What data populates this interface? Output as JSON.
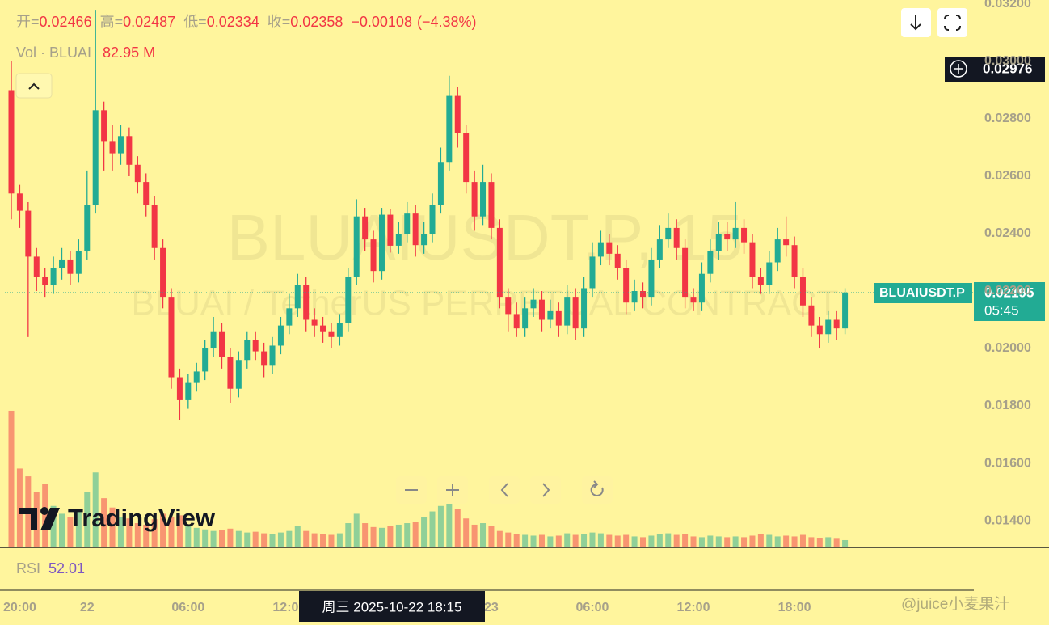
{
  "header": {
    "ohlc_labels": [
      "开=",
      "高=",
      "低=",
      "收="
    ],
    "change": "−0.00108",
    "change_pct": "(−4.38%)",
    "vol_label": "Vol · BLUAI",
    "vol_value": "82.95 M",
    "rsi_label": "RSI",
    "rsi_value": "52.01"
  },
  "watermark": {
    "symbol": "BLUAIUSDT.P, 15",
    "description": "BLUAI / TetherUS PERPETUAL CONTRACT"
  },
  "brand": "TradingView",
  "footer_watermark": "@juice小麦果汁",
  "crosshair": {
    "price": "0.02976",
    "time": "周三 2025-10-22 18:15"
  },
  "last_price": {
    "symbol": "BLUAIUSDT.P",
    "price": "0.02195",
    "countdown": "05:45"
  },
  "chart_data": {
    "type": "candlestick",
    "categories": [
      null,
      "20:00",
      null,
      null,
      null,
      null,
      null,
      null,
      null,
      "22",
      null,
      null,
      null,
      null,
      null,
      null,
      null,
      null,
      null,
      null,
      null,
      "06:00",
      null,
      null,
      null,
      null,
      null,
      null,
      null,
      null,
      null,
      null,
      null,
      "12:00",
      null,
      null,
      null,
      null,
      null,
      null,
      null,
      null,
      null,
      null,
      null,
      null,
      null,
      null,
      null,
      null,
      null,
      null,
      null,
      null,
      null,
      null,
      null,
      "23",
      null,
      null,
      null,
      null,
      null,
      null,
      null,
      null,
      null,
      null,
      null,
      "06:00",
      null,
      null,
      null,
      null,
      null,
      null,
      null,
      null,
      null,
      null,
      null,
      "12:00",
      null,
      null,
      null,
      null,
      null,
      null,
      null,
      null,
      null,
      null,
      null,
      "18:00",
      null,
      null,
      null,
      null,
      null,
      null
    ],
    "open": [
      0.029,
      0.0254,
      0.0248,
      0.0232,
      0.0225,
      0.0222,
      0.0228,
      0.0231,
      0.0226,
      0.0234,
      0.025,
      0.0283,
      0.0272,
      0.0268,
      0.0274,
      0.0264,
      0.0258,
      0.025,
      0.0235,
      0.0218,
      0.019,
      0.0182,
      0.0188,
      0.0192,
      0.02,
      0.0206,
      0.0197,
      0.0186,
      0.0196,
      0.0203,
      0.0199,
      0.0194,
      0.0201,
      0.0208,
      0.0214,
      0.0222,
      0.021,
      0.0208,
      0.0206,
      0.0204,
      0.0209,
      0.0225,
      0.0246,
      0.0238,
      0.0227,
      0.02466,
      0.02358,
      0.024,
      0.0247,
      0.0236,
      0.024,
      0.025,
      0.0265,
      0.0288,
      0.0275,
      0.0258,
      0.0246,
      0.0258,
      0.0242,
      0.0218,
      0.0212,
      0.0207,
      0.0214,
      0.0217,
      0.021,
      0.0213,
      0.0208,
      0.0218,
      0.0207,
      0.0221,
      0.0232,
      0.0237,
      0.0233,
      0.0228,
      0.0216,
      0.022,
      0.0218,
      0.0231,
      0.0238,
      0.0242,
      0.0235,
      0.0218,
      0.0216,
      0.0226,
      0.0234,
      0.024,
      0.0238,
      0.0242,
      0.0237,
      0.0225,
      0.0222,
      0.023,
      0.0238,
      0.0236,
      0.0225,
      0.0215,
      0.0208,
      0.0205,
      0.021,
      0.0207
    ],
    "high": [
      0.03,
      0.0257,
      0.0251,
      0.0235,
      0.0228,
      0.0232,
      0.0235,
      0.0234,
      0.0238,
      0.0262,
      0.0318,
      0.0286,
      0.0278,
      0.0278,
      0.0277,
      0.0267,
      0.0261,
      0.0253,
      0.0238,
      0.0221,
      0.0193,
      0.0191,
      0.0195,
      0.0203,
      0.0211,
      0.0209,
      0.02,
      0.0199,
      0.0206,
      0.0206,
      0.0202,
      0.0204,
      0.0211,
      0.0219,
      0.0226,
      0.0225,
      0.0214,
      0.0211,
      0.0209,
      0.0212,
      0.0228,
      0.0252,
      0.0249,
      0.0241,
      0.0249,
      0.02487,
      0.0244,
      0.0251,
      0.025,
      0.0244,
      0.0254,
      0.027,
      0.0295,
      0.0291,
      0.0278,
      0.0262,
      0.0264,
      0.0261,
      0.0245,
      0.0221,
      0.0216,
      0.0218,
      0.0221,
      0.022,
      0.0217,
      0.0216,
      0.0222,
      0.0221,
      0.0225,
      0.0237,
      0.0241,
      0.024,
      0.0236,
      0.0231,
      0.0224,
      0.0223,
      0.0235,
      0.0243,
      0.0247,
      0.0245,
      0.0238,
      0.0221,
      0.023,
      0.0238,
      0.0244,
      0.0244,
      0.0251,
      0.0245,
      0.024,
      0.0228,
      0.0234,
      0.0242,
      0.0246,
      0.0239,
      0.0228,
      0.0218,
      0.0211,
      0.0213,
      0.0213,
      0.0221
    ],
    "low": [
      0.0245,
      0.0242,
      0.0204,
      0.022,
      0.0218,
      0.0219,
      0.0224,
      0.0222,
      0.0223,
      0.0231,
      0.0247,
      0.0262,
      0.0262,
      0.0264,
      0.026,
      0.0254,
      0.0246,
      0.0231,
      0.0214,
      0.0186,
      0.0175,
      0.0179,
      0.0185,
      0.0189,
      0.0197,
      0.0193,
      0.0181,
      0.0183,
      0.0193,
      0.0196,
      0.019,
      0.0191,
      0.0198,
      0.0205,
      0.0211,
      0.0206,
      0.0204,
      0.0202,
      0.02,
      0.0201,
      0.0206,
      0.0222,
      0.0234,
      0.0223,
      0.0224,
      0.02334,
      0.0233,
      0.0237,
      0.0232,
      0.0233,
      0.0237,
      0.0247,
      0.0262,
      0.027,
      0.0254,
      0.0241,
      0.0243,
      0.0238,
      0.0214,
      0.0206,
      0.0204,
      0.0204,
      0.0211,
      0.0206,
      0.0207,
      0.0204,
      0.0205,
      0.0203,
      0.0204,
      0.0218,
      0.0229,
      0.0229,
      0.0224,
      0.0212,
      0.0213,
      0.0214,
      0.0215,
      0.0228,
      0.0235,
      0.0231,
      0.0214,
      0.0213,
      0.0213,
      0.0223,
      0.0231,
      0.0234,
      0.0235,
      0.0233,
      0.0221,
      0.0219,
      0.0219,
      0.0227,
      0.0232,
      0.0221,
      0.0211,
      0.0204,
      0.02,
      0.0202,
      0.0203,
      0.0205
    ],
    "close": [
      0.0254,
      0.0248,
      0.0232,
      0.0225,
      0.0222,
      0.0228,
      0.0231,
      0.0226,
      0.0234,
      0.025,
      0.0283,
      0.0272,
      0.0268,
      0.0274,
      0.0264,
      0.0258,
      0.025,
      0.0235,
      0.0218,
      0.019,
      0.0182,
      0.0188,
      0.0192,
      0.02,
      0.0206,
      0.0197,
      0.0186,
      0.0196,
      0.0203,
      0.0199,
      0.0194,
      0.0201,
      0.0208,
      0.0214,
      0.0222,
      0.021,
      0.0208,
      0.0206,
      0.0204,
      0.0209,
      0.0225,
      0.0246,
      0.0238,
      0.0227,
      0.02466,
      0.02358,
      0.024,
      0.0247,
      0.0236,
      0.024,
      0.025,
      0.0265,
      0.0288,
      0.0275,
      0.0258,
      0.0246,
      0.0258,
      0.0242,
      0.0218,
      0.0212,
      0.0207,
      0.0214,
      0.0217,
      0.021,
      0.0213,
      0.0208,
      0.0218,
      0.0207,
      0.0221,
      0.0232,
      0.0237,
      0.0233,
      0.0228,
      0.0216,
      0.022,
      0.0218,
      0.0231,
      0.0238,
      0.0242,
      0.0235,
      0.0218,
      0.0216,
      0.0226,
      0.0234,
      0.024,
      0.0238,
      0.0242,
      0.0237,
      0.0225,
      0.0222,
      0.023,
      0.0238,
      0.0236,
      0.0225,
      0.0215,
      0.0208,
      0.0205,
      0.021,
      0.0207,
      0.02195
    ],
    "volume": [
      1740,
      1000,
      900,
      700,
      800,
      520,
      420,
      380,
      460,
      700,
      950,
      620,
      500,
      380,
      360,
      300,
      280,
      350,
      420,
      380,
      400,
      260,
      240,
      220,
      200,
      210,
      230,
      200,
      180,
      190,
      170,
      160,
      180,
      200,
      260,
      200,
      170,
      160,
      150,
      170,
      300,
      420,
      300,
      250,
      240,
      260,
      280,
      300,
      320,
      380,
      450,
      520,
      630,
      480,
      360,
      280,
      300,
      260,
      200,
      180,
      160,
      150,
      140,
      150,
      130,
      140,
      170,
      150,
      160,
      180,
      170,
      150,
      140,
      150,
      130,
      120,
      140,
      160,
      170,
      150,
      160,
      130,
      120,
      140,
      130,
      120,
      130,
      120,
      140,
      160,
      150,
      130,
      140,
      130,
      150,
      120,
      110,
      120,
      100,
      82.95
    ],
    "ylim": [
      0.0131,
      0.03214
    ],
    "yticks": [
      {
        "value": 0.014,
        "label": "0.01400"
      },
      {
        "value": 0.016,
        "label": "0.01600"
      },
      {
        "value": 0.018,
        "label": "0.01800"
      },
      {
        "value": 0.02,
        "label": "0.02000"
      },
      {
        "value": 0.022,
        "label": "0.02200"
      },
      {
        "value": 0.024,
        "label": "0.02400"
      },
      {
        "value": 0.026,
        "label": "0.02600"
      },
      {
        "value": 0.028,
        "label": "0.02800"
      },
      {
        "value": 0.03,
        "label": "0.03000"
      },
      {
        "value": 0.032,
        "label": "0.03200"
      }
    ],
    "volume_lim": [
      0,
      7000
    ],
    "up_color": "#22ab94",
    "down_color": "#f23645"
  }
}
